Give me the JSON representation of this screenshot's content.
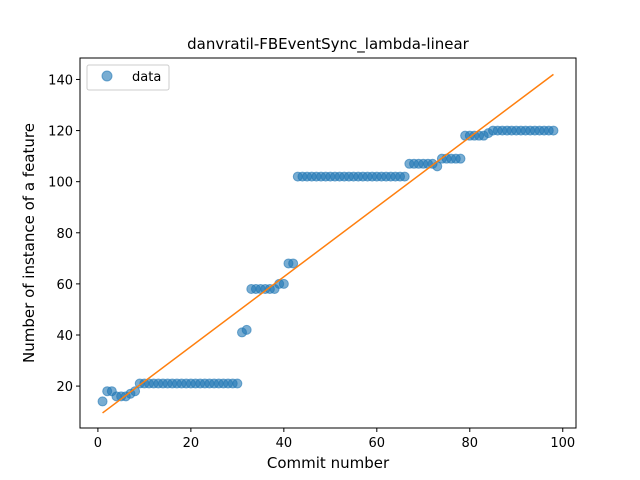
{
  "chart_data": {
    "type": "scatter",
    "title": "danvratil-FBEventSync_lambda-linear",
    "xlabel": "Commit number",
    "ylabel": "Number of instance of a feature",
    "xlim": [
      -3.85,
      102.85
    ],
    "ylim": [
      3.6,
      148.4
    ],
    "xticks": [
      0,
      20,
      40,
      60,
      80,
      100
    ],
    "yticks": [
      20,
      40,
      60,
      80,
      100,
      120,
      140
    ],
    "grid": false,
    "legend": {
      "placement": "top-left",
      "entries": [
        "data"
      ]
    },
    "series": [
      {
        "name": "data",
        "kind": "scatter",
        "color": "#1f77b4",
        "x": [
          1,
          2,
          3,
          4,
          5,
          6,
          7,
          8,
          9,
          10,
          11,
          12,
          13,
          14,
          15,
          16,
          17,
          18,
          19,
          20,
          21,
          22,
          23,
          24,
          25,
          26,
          27,
          28,
          29,
          30,
          31,
          32,
          33,
          34,
          35,
          36,
          37,
          38,
          39,
          40,
          41,
          42,
          43,
          44,
          45,
          46,
          47,
          48,
          49,
          50,
          51,
          52,
          53,
          54,
          55,
          56,
          57,
          58,
          59,
          60,
          61,
          62,
          63,
          64,
          65,
          66,
          67,
          68,
          69,
          70,
          71,
          72,
          73,
          74,
          75,
          76,
          77,
          78,
          79,
          80,
          81,
          82,
          83,
          84,
          85,
          86,
          87,
          88,
          89,
          90,
          91,
          92,
          93,
          94,
          95,
          96,
          97,
          98
        ],
        "y": [
          14,
          18,
          18,
          16,
          16,
          16,
          17,
          18,
          21,
          21,
          21,
          21,
          21,
          21,
          21,
          21,
          21,
          21,
          21,
          21,
          21,
          21,
          21,
          21,
          21,
          21,
          21,
          21,
          21,
          21,
          41,
          42,
          58,
          58,
          58,
          58,
          58,
          58,
          60,
          60,
          68,
          68,
          102,
          102,
          102,
          102,
          102,
          102,
          102,
          102,
          102,
          102,
          102,
          102,
          102,
          102,
          102,
          102,
          102,
          102,
          102,
          102,
          102,
          102,
          102,
          102,
          107,
          107,
          107,
          107,
          107,
          107,
          106,
          109,
          109,
          109,
          109,
          109,
          118,
          118,
          118,
          118,
          118,
          119,
          120,
          120,
          120,
          120,
          120,
          120,
          120,
          120,
          120,
          120,
          120,
          120,
          120,
          120
        ]
      },
      {
        "kind": "line",
        "color": "#ff7f0e",
        "x": [
          1,
          98
        ],
        "y": [
          9.5,
          142
        ]
      }
    ]
  }
}
